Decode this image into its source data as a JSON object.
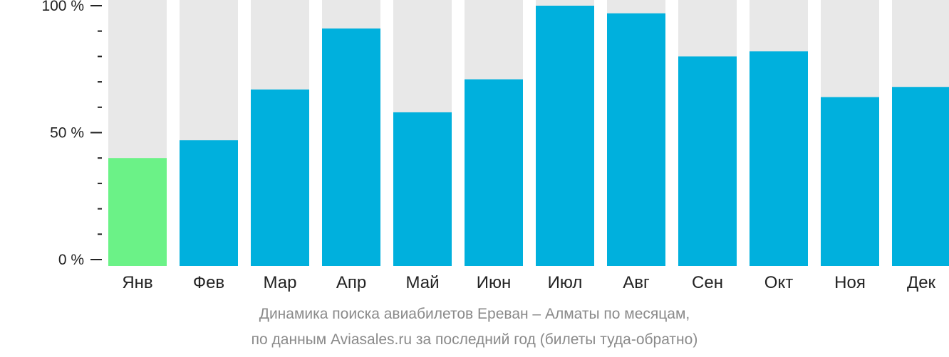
{
  "chart_data": {
    "type": "bar",
    "categories": [
      "Янв",
      "Фев",
      "Мар",
      "Апр",
      "Май",
      "Июн",
      "Июл",
      "Авг",
      "Сен",
      "Окт",
      "Ноя",
      "Дек"
    ],
    "values": [
      40,
      47,
      67,
      91,
      58,
      71,
      100,
      97,
      80,
      82,
      64,
      68
    ],
    "ylim": [
      0,
      100
    ],
    "y_ticks": [
      {
        "value": 0,
        "label": "0 %"
      },
      {
        "value": 50,
        "label": "50 %"
      },
      {
        "value": 100,
        "label": "100 %"
      }
    ],
    "y_minor_tick_step": 10,
    "highlight_index": 0,
    "caption": [
      "Динамика поиска авиабилетов Ереван – Алматы по месяцам,",
      "по данным Aviasales.ru за последний год (билеты туда-обратно)"
    ],
    "colors": {
      "bar": "#00b0dd",
      "bar_highlight": "#6bf287",
      "background_bar": "#e8e8e8",
      "axis": "#222222",
      "caption": "#8a8a8a"
    }
  }
}
